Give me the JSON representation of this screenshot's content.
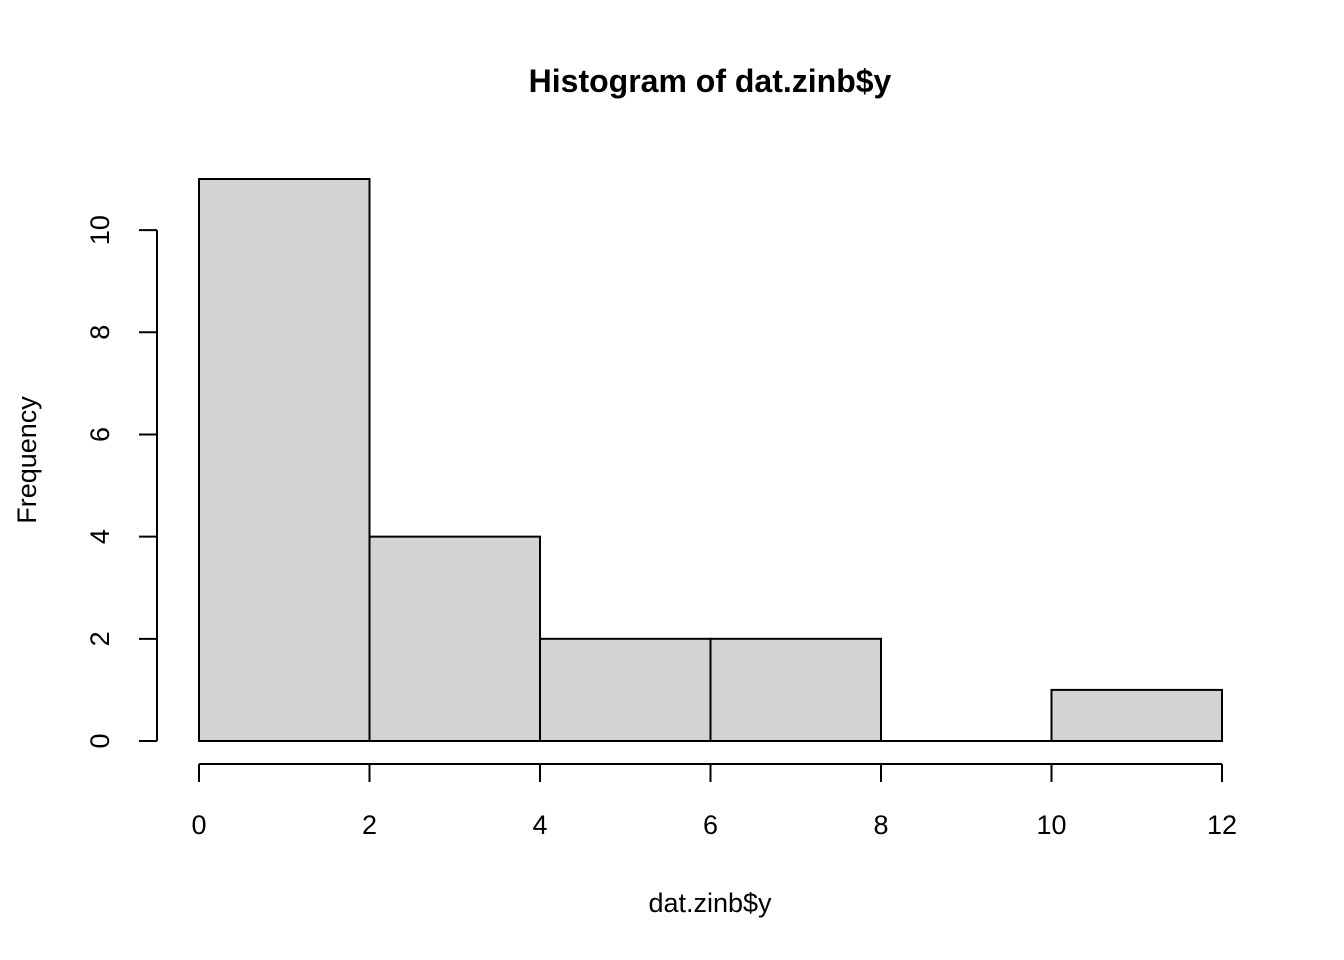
{
  "chart_data": {
    "type": "bar",
    "title": "Histogram of dat.zinb$y",
    "xlabel": "dat.zinb$y",
    "ylabel": "Frequency",
    "bins": [
      {
        "start": 0,
        "end": 2,
        "count": 11
      },
      {
        "start": 2,
        "end": 4,
        "count": 4
      },
      {
        "start": 4,
        "end": 6,
        "count": 2
      },
      {
        "start": 6,
        "end": 8,
        "count": 2
      },
      {
        "start": 8,
        "end": 10,
        "count": 0
      },
      {
        "start": 10,
        "end": 12,
        "count": 1
      }
    ],
    "x_ticks": [
      0,
      2,
      4,
      6,
      8,
      10,
      12
    ],
    "y_ticks": [
      0,
      2,
      4,
      6,
      8,
      10
    ],
    "x_tick_labels": [
      "0",
      "2",
      "4",
      "6",
      "8",
      "10",
      "12"
    ],
    "y_tick_labels": [
      "0",
      "2",
      "4",
      "6",
      "8",
      "10"
    ],
    "xlim": [
      0,
      12
    ],
    "ylim": [
      0,
      11
    ],
    "grid": false,
    "legend": "none",
    "colors": {
      "bar_fill": "#d3d3d3",
      "bar_stroke": "#000000",
      "axis": "#000000",
      "background": "#ffffff"
    }
  }
}
